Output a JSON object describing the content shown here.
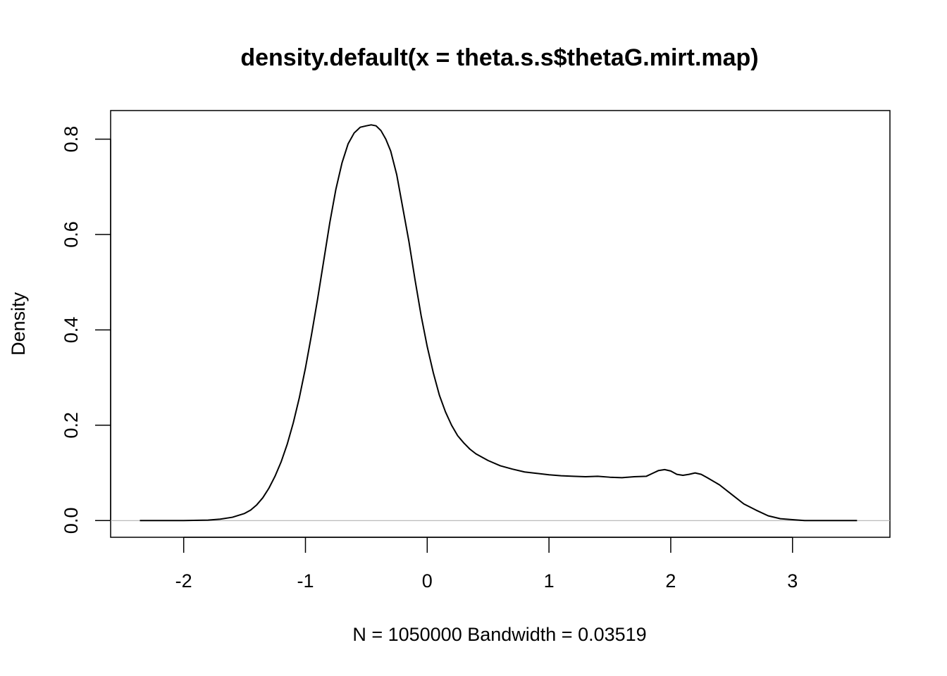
{
  "chart_data": {
    "type": "line",
    "title": "density.default(x = theta.s.s$thetaG.mirt.map)",
    "xlabel": "N = 1050000   Bandwidth = 0.03519",
    "ylabel": "Density",
    "xlim": [
      -2.6,
      3.8
    ],
    "ylim": [
      -0.035,
      0.86
    ],
    "x_ticks": [
      -2,
      -1,
      0,
      1,
      2,
      3
    ],
    "x_tick_labels": [
      "-2",
      "-1",
      "0",
      "1",
      "2",
      "3"
    ],
    "y_ticks": [
      0.0,
      0.2,
      0.4,
      0.6,
      0.8
    ],
    "y_tick_labels": [
      "0.0",
      "0.2",
      "0.4",
      "0.6",
      "0.8"
    ],
    "baseline": 0,
    "baseline_color": "#b3b3b3",
    "grid": false,
    "legend": "none",
    "series": [
      {
        "color": "#000000",
        "x": [
          -2.36,
          -2.2,
          -2.0,
          -1.8,
          -1.7,
          -1.6,
          -1.5,
          -1.45,
          -1.4,
          -1.35,
          -1.3,
          -1.25,
          -1.2,
          -1.15,
          -1.1,
          -1.05,
          -1.0,
          -0.95,
          -0.9,
          -0.85,
          -0.8,
          -0.75,
          -0.7,
          -0.65,
          -0.6,
          -0.55,
          -0.5,
          -0.46,
          -0.42,
          -0.38,
          -0.34,
          -0.3,
          -0.25,
          -0.2,
          -0.15,
          -0.1,
          -0.05,
          0.0,
          0.05,
          0.1,
          0.15,
          0.2,
          0.25,
          0.3,
          0.35,
          0.4,
          0.5,
          0.6,
          0.7,
          0.8,
          0.9,
          1.0,
          1.1,
          1.2,
          1.3,
          1.4,
          1.5,
          1.6,
          1.7,
          1.8,
          1.85,
          1.9,
          1.95,
          2.0,
          2.05,
          2.1,
          2.15,
          2.2,
          2.25,
          2.3,
          2.4,
          2.5,
          2.6,
          2.7,
          2.8,
          2.9,
          3.0,
          3.1,
          3.2,
          3.35,
          3.53
        ],
        "y": [
          0.0,
          0.0,
          0.0,
          0.001,
          0.003,
          0.007,
          0.015,
          0.022,
          0.033,
          0.048,
          0.068,
          0.093,
          0.123,
          0.16,
          0.205,
          0.258,
          0.32,
          0.39,
          0.465,
          0.545,
          0.625,
          0.695,
          0.75,
          0.79,
          0.813,
          0.825,
          0.828,
          0.83,
          0.828,
          0.818,
          0.8,
          0.775,
          0.725,
          0.655,
          0.585,
          0.505,
          0.43,
          0.365,
          0.31,
          0.263,
          0.228,
          0.2,
          0.178,
          0.163,
          0.15,
          0.14,
          0.126,
          0.115,
          0.108,
          0.102,
          0.099,
          0.096,
          0.094,
          0.093,
          0.092,
          0.093,
          0.091,
          0.09,
          0.092,
          0.093,
          0.099,
          0.105,
          0.107,
          0.104,
          0.097,
          0.095,
          0.097,
          0.1,
          0.097,
          0.09,
          0.075,
          0.055,
          0.035,
          0.022,
          0.01,
          0.004,
          0.002,
          0.0,
          0.0,
          0.0,
          0.0
        ]
      }
    ]
  }
}
